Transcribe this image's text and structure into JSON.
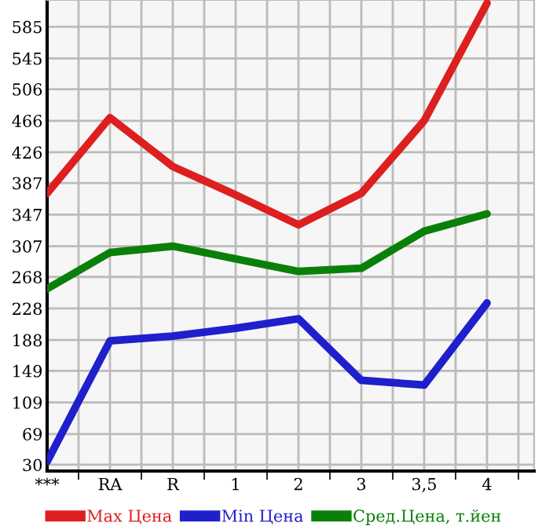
{
  "chart_data": {
    "type": "line",
    "categories": [
      "***",
      "RA",
      "R",
      "1",
      "2",
      "3",
      "3,5",
      "4"
    ],
    "series": [
      {
        "name": "Max Цена",
        "color": "#dd1f1f",
        "values": [
          374,
          470,
          408,
          372,
          334,
          374,
          466,
          615
        ]
      },
      {
        "name": "Min Цена",
        "color": "#1f1fcc",
        "values": [
          34,
          187,
          193,
          203,
          215,
          137,
          131,
          235
        ]
      },
      {
        "name": "Сред.Цена, т.йен",
        "color": "#0a800a",
        "values": [
          253,
          299,
          307,
          291,
          275,
          279,
          326,
          348
        ]
      }
    ],
    "ylim": [
      22,
      619
    ],
    "yticks": [
      30,
      69,
      109,
      149,
      188,
      228,
      268,
      307,
      347,
      387,
      426,
      466,
      506,
      545,
      585
    ],
    "grid": true,
    "legend": "bottom",
    "marker": "none",
    "line_style": "solid"
  }
}
